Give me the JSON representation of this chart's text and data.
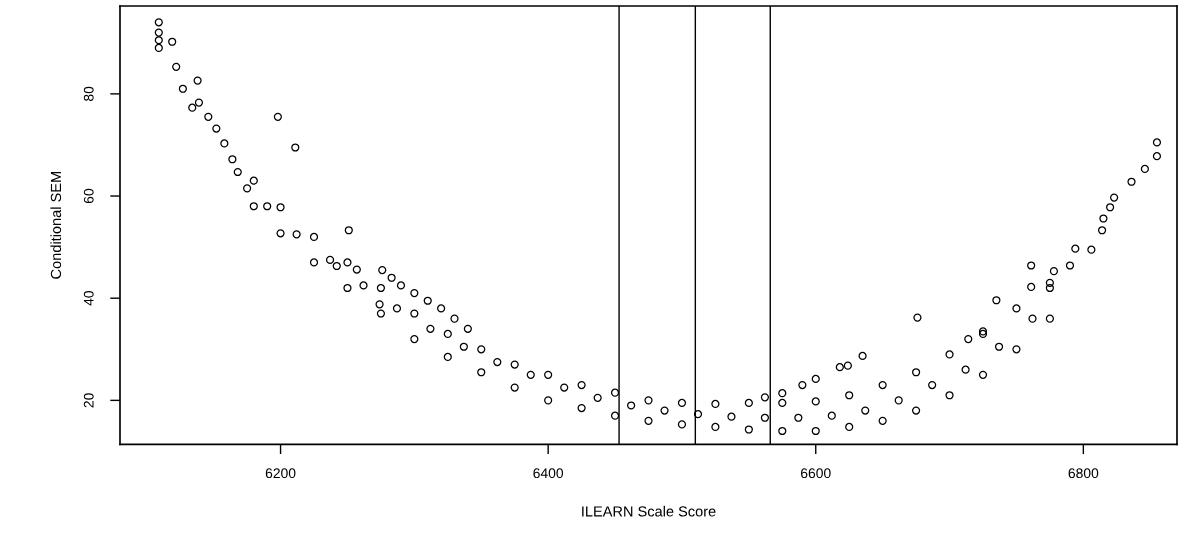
{
  "chart_data": {
    "type": "scatter",
    "xlabel": "ILEARN Scale Score",
    "ylabel": "Conditional SEM",
    "marker": "circle",
    "grid": false,
    "xlim": [
      6080,
      6870
    ],
    "ylim": [
      11.4,
      97.2
    ],
    "xticks": [
      6200,
      6400,
      6600,
      6800
    ],
    "yticks": [
      20,
      40,
      60,
      80
    ],
    "ref_lines": [
      {
        "axis": "x",
        "value": 6453,
        "color": "#000000"
      },
      {
        "axis": "x",
        "value": 6510,
        "color": "#000000"
      },
      {
        "axis": "x",
        "value": 6566,
        "color": "#000000"
      }
    ],
    "series": [
      {
        "color": "#000000",
        "x": [
          6109,
          6109,
          6109,
          6109,
          6119,
          6122,
          6127,
          6138,
          6134,
          6139,
          6146,
          6152,
          6158,
          6164,
          6168,
          6175,
          6198,
          6211,
          6251,
          6242,
          6257,
          6276,
          6283,
          6290,
          6300,
          6310,
          6320,
          6330,
          6340,
          6274,
          6180,
          6200,
          6225,
          6250,
          6275,
          6300,
          6325,
          6350,
          6375,
          6400,
          6425,
          6450,
          6475,
          6500,
          6525,
          6550,
          6575,
          6600,
          6625,
          6650,
          6675,
          6700,
          6725,
          6750,
          6775,
          6180,
          6200,
          6225,
          6250,
          6275,
          6300,
          6325,
          6350,
          6375,
          6400,
          6425,
          6450,
          6475,
          6500,
          6525,
          6550,
          6575,
          6600,
          6625,
          6650,
          6675,
          6700,
          6725,
          6750,
          6775,
          6190,
          6212,
          6237,
          6262,
          6287,
          6312,
          6337,
          6362,
          6387,
          6412,
          6437,
          6462,
          6487,
          6512,
          6537,
          6562,
          6587,
          6612,
          6637,
          6662,
          6687,
          6712,
          6737,
          6762,
          6855,
          6855,
          6846,
          6836,
          6823,
          6820,
          6815,
          6814,
          6794,
          6806,
          6790,
          6761,
          6778,
          6735,
          6676,
          6635,
          6618,
          6624,
          6600,
          6590,
          6575,
          6562,
          6761,
          6775,
          6725,
          6714
        ],
        "values": [
          94,
          92,
          90.5,
          89,
          90.2,
          85.3,
          81,
          82.6,
          77.3,
          78.3,
          75.5,
          73.2,
          70.3,
          67.2,
          64.7,
          61.5,
          75.5,
          69.5,
          53.3,
          46.3,
          45.6,
          45.5,
          44,
          42.5,
          41,
          39.5,
          38,
          36,
          34,
          38.8,
          58,
          52.7,
          47,
          42,
          37,
          32,
          28.5,
          25.5,
          22.5,
          20,
          18.5,
          17,
          16,
          15.3,
          14.8,
          14.3,
          14,
          14,
          14.8,
          16,
          18,
          21,
          25,
          30,
          36,
          63,
          57.8,
          52,
          47,
          42,
          37,
          33,
          30,
          27,
          25,
          23,
          21.5,
          20,
          19.5,
          19.3,
          19.5,
          19.5,
          19.8,
          21,
          23,
          25.5,
          29,
          33,
          38,
          43,
          58,
          52.5,
          47.5,
          42.5,
          38,
          34,
          30.5,
          27.5,
          25,
          22.5,
          20.5,
          19,
          18,
          17.3,
          16.8,
          16.6,
          16.6,
          17,
          18,
          20,
          23,
          26,
          30.5,
          36,
          70.5,
          67.8,
          65.3,
          62.8,
          59.7,
          57.8,
          55.6,
          53.3,
          49.7,
          49.5,
          46.4,
          46.4,
          45.3,
          39.6,
          36.2,
          28.7,
          26.5,
          26.8,
          24.2,
          23,
          21.4,
          20.6,
          42.2,
          42,
          33.5,
          32
        ]
      }
    ]
  }
}
